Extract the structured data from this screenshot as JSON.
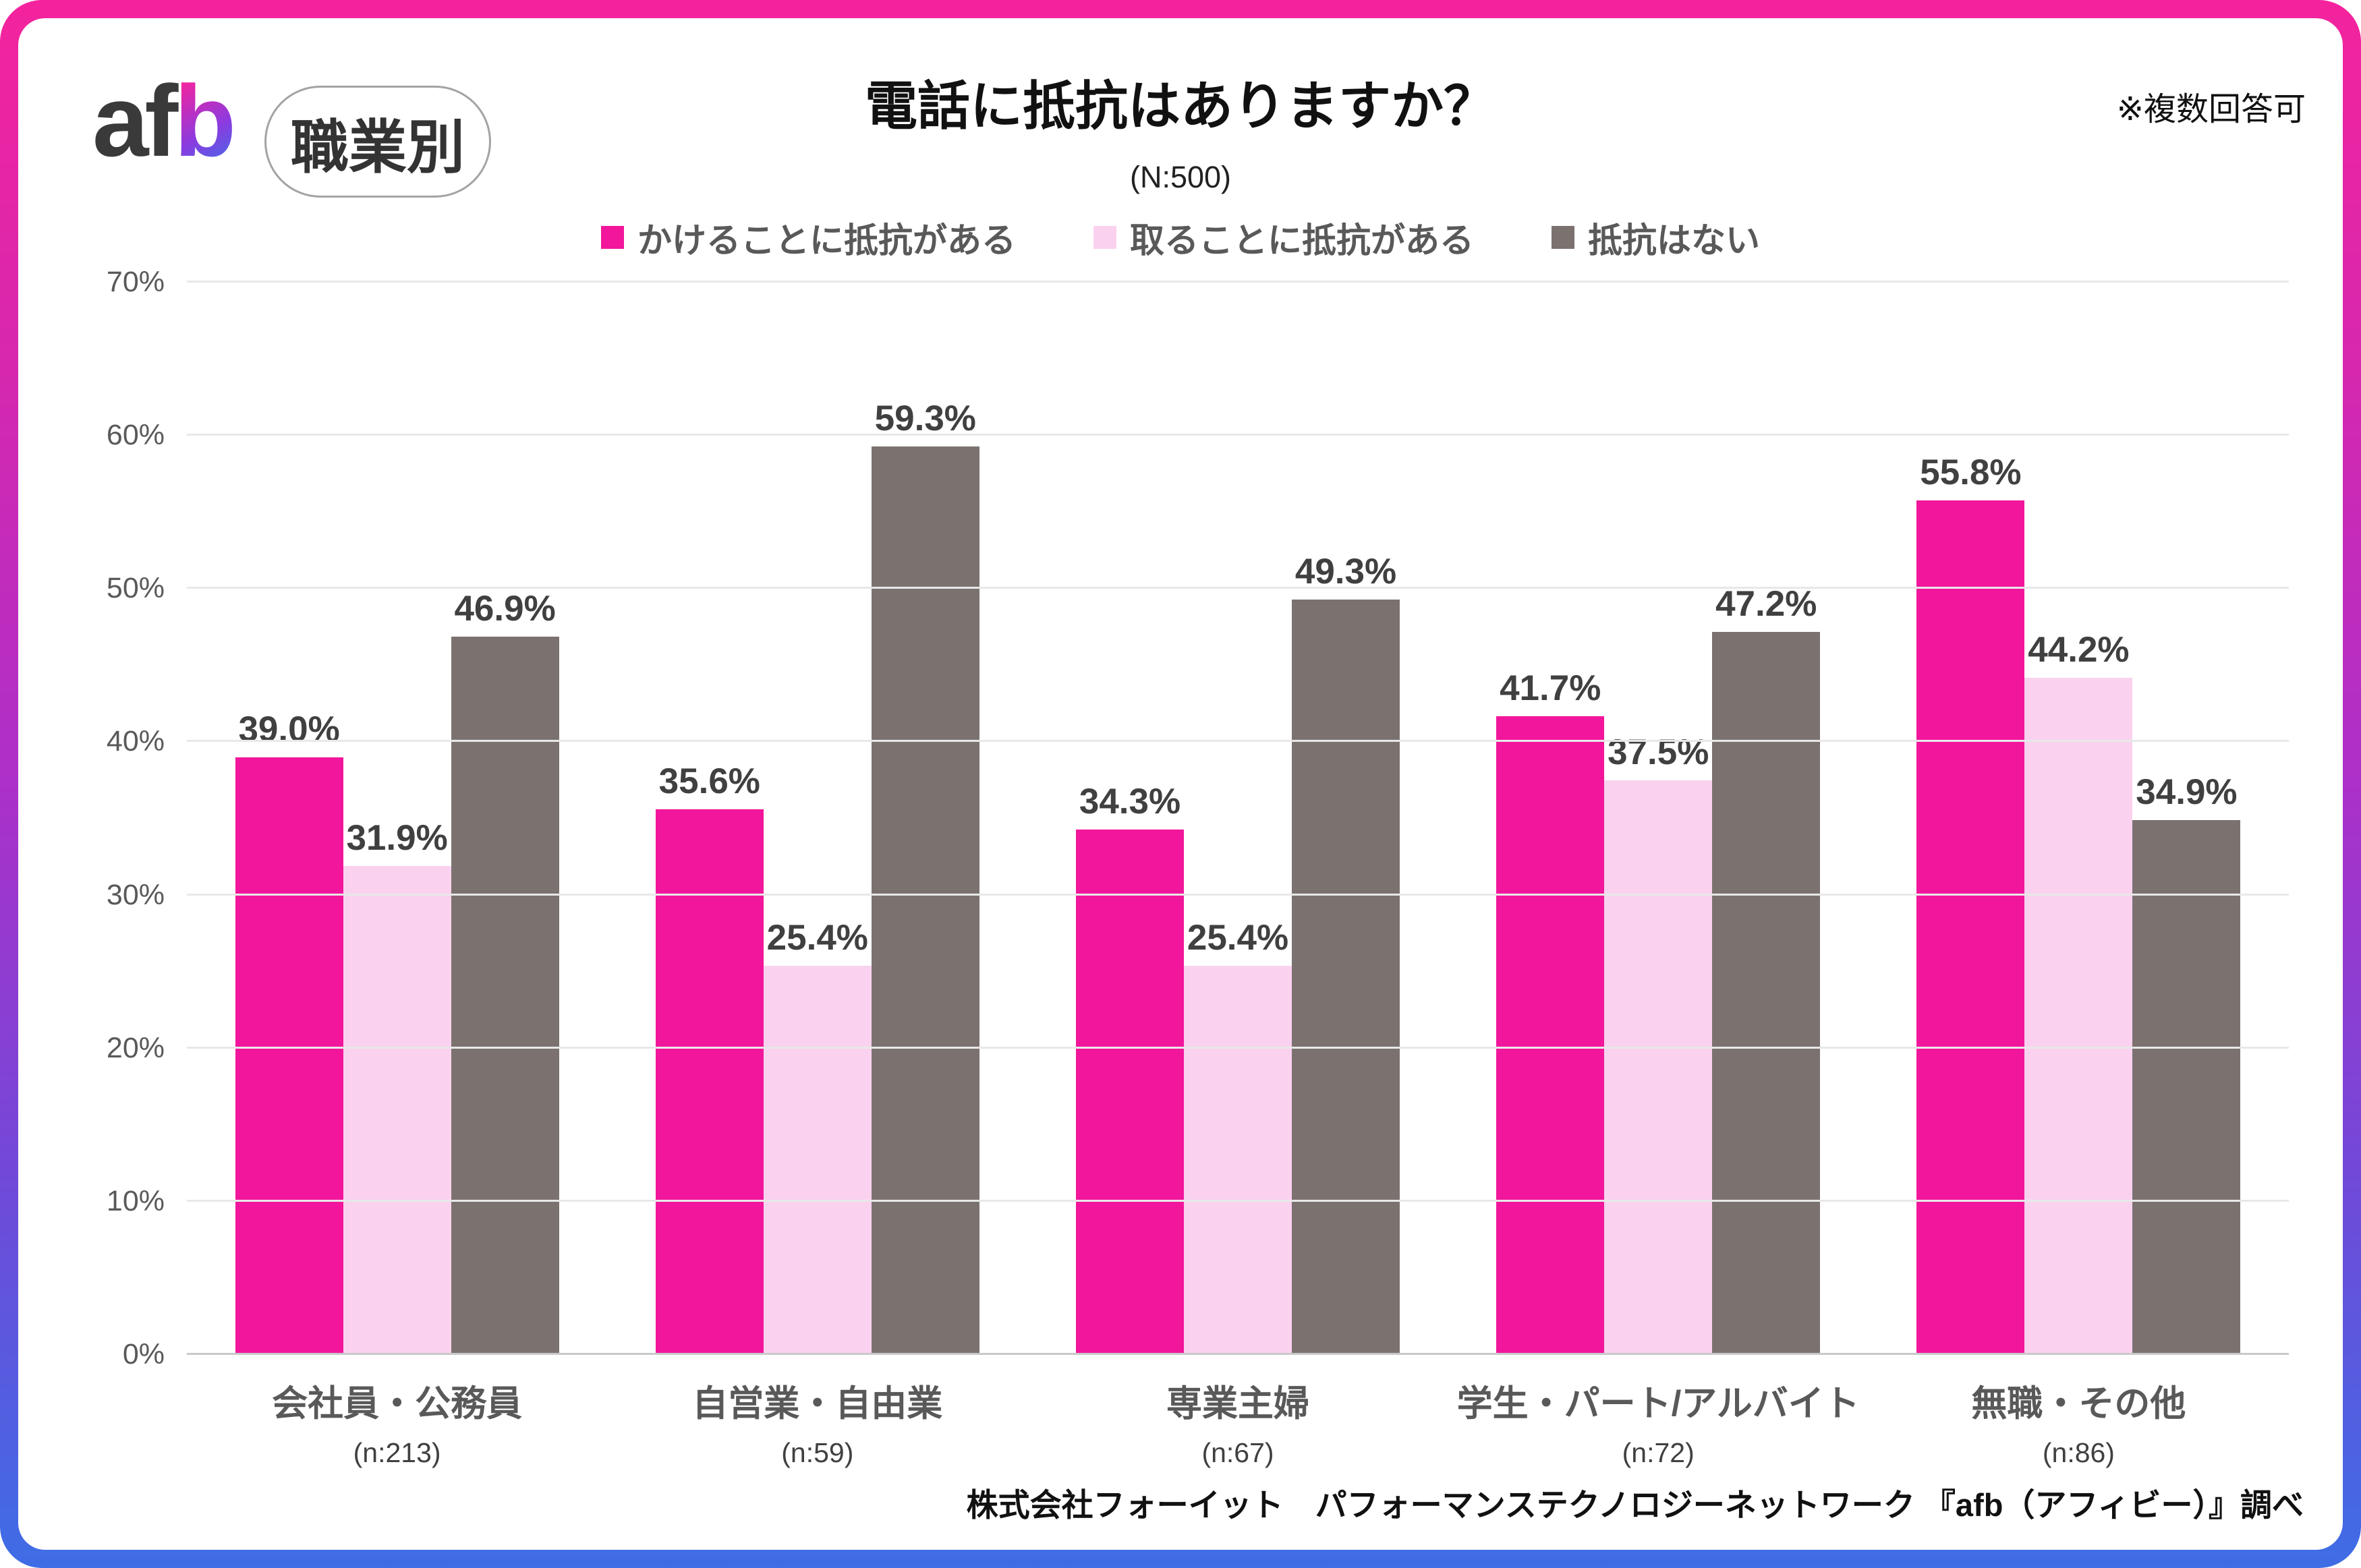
{
  "logo": {
    "text_dark": "af",
    "text_accent": "b"
  },
  "badge": {
    "label": "職業別"
  },
  "header": {
    "title": "電話に抵抗はありますか？",
    "subtitle": "(N:500)",
    "note": "※複数回答可"
  },
  "chart_data": {
    "type": "bar",
    "title": "電話に抵抗はありますか？",
    "n_total": "(N:500)",
    "categories": [
      "会社員・公務員",
      "自営業・自由業",
      "専業主婦",
      "学生・パート/アルバイト",
      "無職・その他"
    ],
    "category_counts": [
      "(n:213)",
      "(n:59)",
      "(n:67)",
      "(n:72)",
      "(n:86)"
    ],
    "series": [
      {
        "name": "かけることに抵抗がある",
        "color": "#F2169C",
        "values": [
          39.0,
          35.6,
          34.3,
          41.7,
          55.8
        ]
      },
      {
        "name": "取ることに抵抗がある",
        "color": "#FAD2F0",
        "values": [
          31.9,
          25.4,
          25.4,
          37.5,
          44.2
        ]
      },
      {
        "name": "抵抗はない",
        "color": "#7B7270",
        "values": [
          46.9,
          59.3,
          49.3,
          47.2,
          34.9
        ]
      }
    ],
    "ylabel_ticks": [
      "0%",
      "10%",
      "20%",
      "30%",
      "40%",
      "50%",
      "60%",
      "70%"
    ],
    "ylim": [
      0,
      70
    ],
    "grid": true,
    "legend_position": "top",
    "value_suffix": "%",
    "value_decimals": 1
  },
  "footer": {
    "source": "株式会社フォーイット　パフォーマンステクノロジーネットワーク 『afb（アフィビー）』調べ"
  },
  "colors": {
    "accent_pink": "#F2169C",
    "light_pink": "#FAD2F0",
    "gray": "#7B7270",
    "frame_top": "#F4239D",
    "frame_mid": "#AC30C9",
    "frame_bottom": "#3E6DE5",
    "grid_line": "#E8E8E8",
    "axis_line": "#C9C9C9"
  }
}
